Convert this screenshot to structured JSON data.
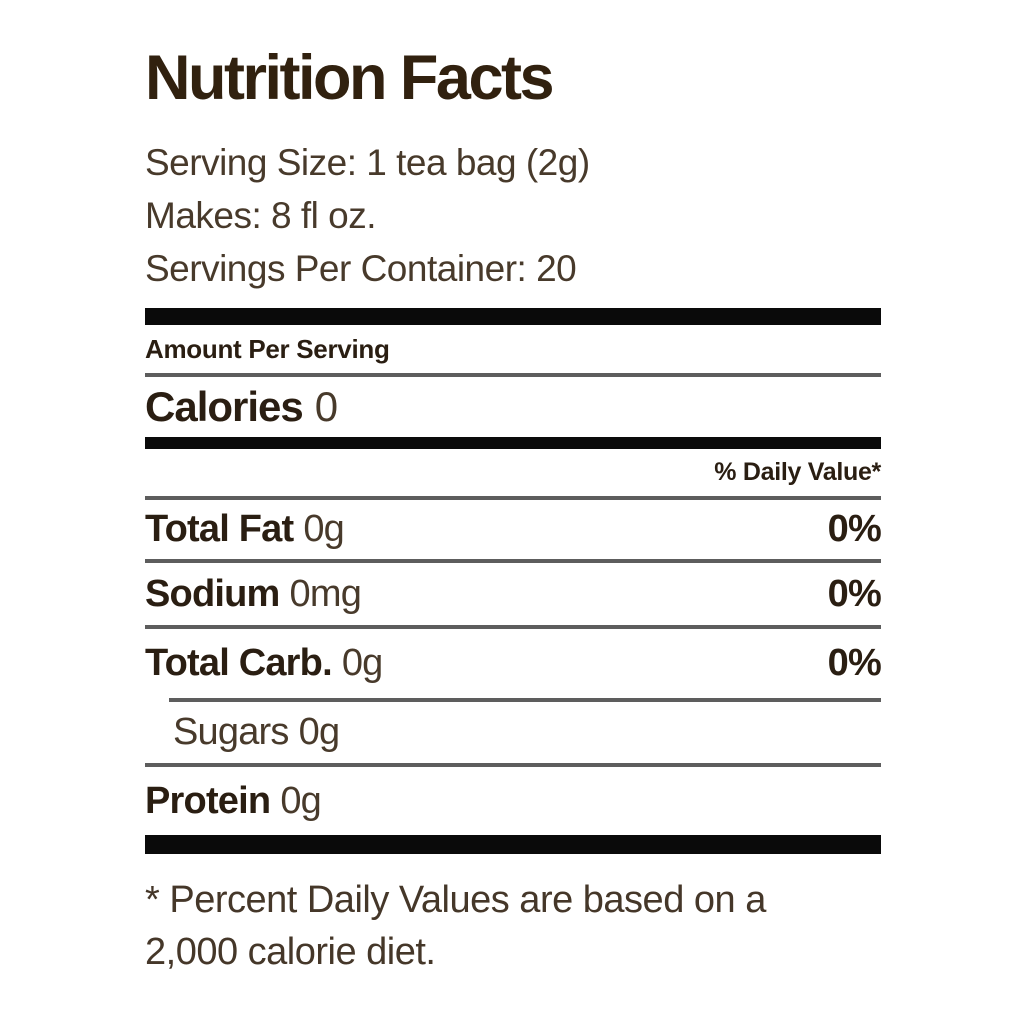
{
  "label": {
    "title": "Nutrition Facts",
    "serving_info": [
      "Serving Size: 1 tea bag (2g)",
      "Makes: 8 fl oz.",
      "Servings Per Container: 20"
    ],
    "amount_per_serving": "Amount Per Serving",
    "calories": {
      "label": "Calories",
      "value": "0"
    },
    "daily_value_header": "% Daily Value*",
    "nutrients": [
      {
        "name": "Total Fat",
        "amount": "0g",
        "daily_value": "0%"
      },
      {
        "name": "Sodium",
        "amount": "0mg",
        "daily_value": "0%"
      },
      {
        "name": "Total Carb.",
        "amount": "0g",
        "daily_value": "0%"
      },
      {
        "name": "Sugars",
        "amount": "0g",
        "daily_value": ""
      },
      {
        "name": "Protein",
        "amount": "0g",
        "daily_value": ""
      }
    ],
    "footnote_lines": [
      "* Percent Daily Values are based on a",
      "2,000 calorie diet."
    ]
  },
  "colors": {
    "text_bold": "#2a1e12",
    "text_regular": "#483a2b",
    "bar_black": "#0a0a0a",
    "rule_gray": "#5d5d5d",
    "background": "#ffffff"
  }
}
